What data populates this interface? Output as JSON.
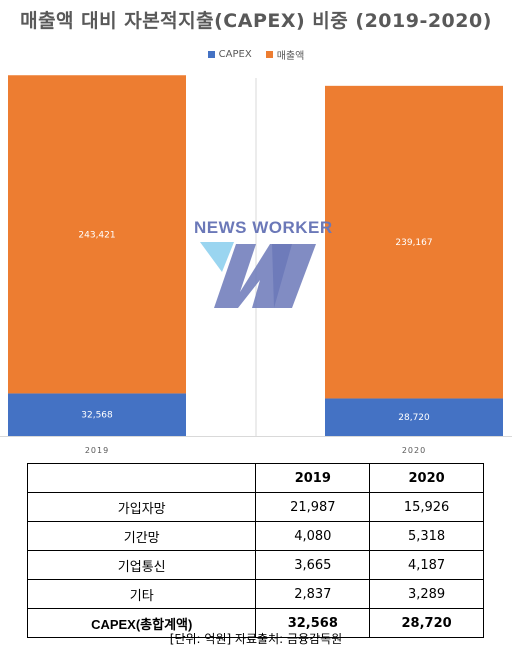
{
  "chart_data": {
    "type": "bar",
    "stacked": true,
    "title": "매출액 대비 자본적지출(CAPEX) 비중 (2019-2020)",
    "categories": [
      "2019",
      "2020"
    ],
    "series": [
      {
        "name": "CAPEX",
        "values": [
          32568,
          28720
        ],
        "color": "#4472c4"
      },
      {
        "name": "매출액",
        "values": [
          243421,
          239167
        ],
        "color": "#ed7d31"
      }
    ],
    "data_labels": [
      [
        "32,568",
        "28,720"
      ],
      [
        "243,421",
        "239,167"
      ]
    ],
    "legend_position": "top",
    "gridlines": false
  },
  "watermark": {
    "text": "NEWS WORKER",
    "colors": [
      "#6b78b8",
      "#8fd0ee"
    ]
  },
  "table": {
    "headers": [
      "",
      "2019",
      "2020"
    ],
    "rows": [
      [
        "가입자망",
        "21,987",
        "15,926"
      ],
      [
        "기간망",
        "4,080",
        "5,318"
      ],
      [
        "기업통신",
        "3,665",
        "4,187"
      ],
      [
        "기타",
        "2,837",
        "3,289"
      ]
    ],
    "total": [
      "CAPEX(총합계액)",
      "32,568",
      "28,720"
    ]
  },
  "source": "[단위: 억원] 자료출처: 금융감독원"
}
